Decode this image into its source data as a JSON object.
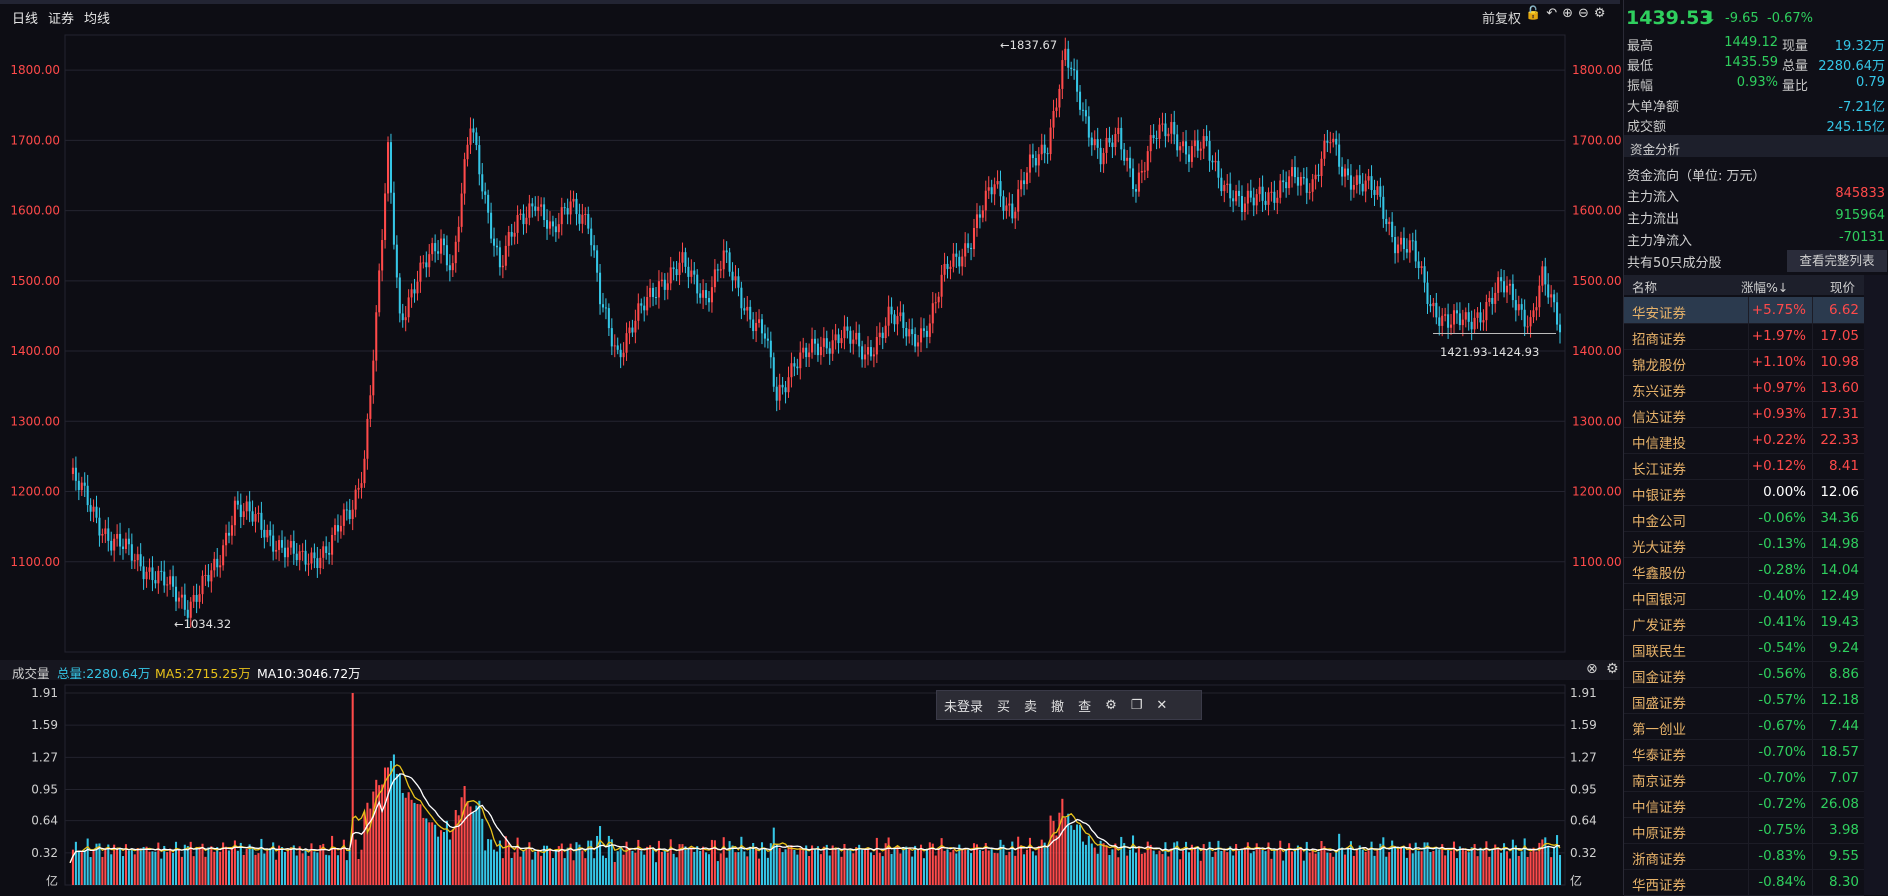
{
  "chart_toolbar": {
    "tabs": [
      "日线",
      "证券",
      "均线"
    ],
    "restore": "前复权"
  },
  "price_chart": {
    "y_ticks": [
      "1800.00",
      "1700.00",
      "1600.00",
      "1500.00",
      "1400.00",
      "1300.00",
      "1200.00",
      "1100.00"
    ],
    "annotations": {
      "high": "←1837.67",
      "low": "←1034.32",
      "last_range": "1421.93-1424.93"
    }
  },
  "volume_chart": {
    "label": "成交量",
    "total": "总量:2280.64万",
    "ma5": "MA5:2715.25万",
    "ma10": "MA10:3046.72万",
    "y_ticks": [
      "1.91",
      "1.59",
      "1.27",
      "0.95",
      "0.64",
      "0.32",
      "亿"
    ],
    "toolbar": [
      "未登录",
      "买",
      "卖",
      "撤",
      "查"
    ]
  },
  "chart_data": {
    "type": "candlestick",
    "price_ylim": [
      1000,
      1850
    ],
    "volume_ylim": [
      0,
      1.91
    ],
    "price_marks": {
      "high": 1837.67,
      "low": 1034.32,
      "last_low": 1421.93,
      "last_high": 1424.93
    }
  },
  "quote": {
    "price": "1439.53",
    "arrow": "⬇",
    "change": "-9.65",
    "change_pct": "-0.67%",
    "stats": [
      {
        "l1": "最高",
        "v1": "1449.12",
        "l2": "现量",
        "v2": "19.32万"
      },
      {
        "l1": "最低",
        "v1": "1435.59",
        "l2": "总量",
        "v2": "2280.64万"
      },
      {
        "l1": "振幅",
        "v1": "0.93%",
        "l2": "量比",
        "v2": "0.79"
      }
    ],
    "big_order_label": "大单净额",
    "big_order_value": "-7.21亿",
    "turnover_label": "成交额",
    "turnover_value": "245.15亿"
  },
  "fund": {
    "title": "资金分析",
    "subtitle": "资金流向（单位: 万元）",
    "rows": [
      {
        "label": "主力流入",
        "value": "845833"
      },
      {
        "label": "主力流出",
        "value": "915964"
      },
      {
        "label": "主力净流入",
        "value": "-70131"
      }
    ]
  },
  "constituents": {
    "count_label": "共有50只成分股",
    "full_list_button": "查看完整列表",
    "headers": [
      "名称",
      "涨幅%↓",
      "现价"
    ],
    "rows": [
      {
        "name": "华安证券",
        "pct": "+5.75%",
        "price": "6.62",
        "dir": "up"
      },
      {
        "name": "招商证券",
        "pct": "+1.97%",
        "price": "17.05",
        "dir": "up"
      },
      {
        "name": "锦龙股份",
        "pct": "+1.10%",
        "price": "10.98",
        "dir": "up"
      },
      {
        "name": "东兴证券",
        "pct": "+0.97%",
        "price": "13.60",
        "dir": "up"
      },
      {
        "name": "信达证券",
        "pct": "+0.93%",
        "price": "17.31",
        "dir": "up"
      },
      {
        "name": "中信建投",
        "pct": "+0.22%",
        "price": "22.33",
        "dir": "up"
      },
      {
        "name": "长江证券",
        "pct": "+0.12%",
        "price": "8.41",
        "dir": "up"
      },
      {
        "name": "中银证券",
        "pct": "0.00%",
        "price": "12.06",
        "dir": "flat"
      },
      {
        "name": "中金公司",
        "pct": "-0.06%",
        "price": "34.36",
        "dir": "down"
      },
      {
        "name": "光大证券",
        "pct": "-0.13%",
        "price": "14.98",
        "dir": "down"
      },
      {
        "name": "华鑫股份",
        "pct": "-0.28%",
        "price": "14.04",
        "dir": "down"
      },
      {
        "name": "中国银河",
        "pct": "-0.40%",
        "price": "12.49",
        "dir": "down"
      },
      {
        "name": "广发证券",
        "pct": "-0.41%",
        "price": "19.43",
        "dir": "down"
      },
      {
        "name": "国联民生",
        "pct": "-0.54%",
        "price": "9.24",
        "dir": "down"
      },
      {
        "name": "国金证券",
        "pct": "-0.56%",
        "price": "8.86",
        "dir": "down"
      },
      {
        "name": "国盛证券",
        "pct": "-0.57%",
        "price": "12.18",
        "dir": "down"
      },
      {
        "name": "第一创业",
        "pct": "-0.67%",
        "price": "7.44",
        "dir": "down"
      },
      {
        "name": "华泰证券",
        "pct": "-0.70%",
        "price": "18.57",
        "dir": "down"
      },
      {
        "name": "南京证券",
        "pct": "-0.70%",
        "price": "7.07",
        "dir": "down"
      },
      {
        "name": "中信证券",
        "pct": "-0.72%",
        "price": "26.08",
        "dir": "down"
      },
      {
        "name": "中原证券",
        "pct": "-0.75%",
        "price": "3.98",
        "dir": "down"
      },
      {
        "name": "浙商证券",
        "pct": "-0.83%",
        "price": "9.55",
        "dir": "down"
      },
      {
        "name": "华西证券",
        "pct": "-0.84%",
        "price": "8.30",
        "dir": "down"
      }
    ]
  },
  "colors": {
    "up": "#ff4a4a",
    "down": "#2fcf5e",
    "cyan": "#35c6e6",
    "ma5": "#e8c21a",
    "ma10": "#ffffff",
    "bg": "#0d0d14"
  }
}
